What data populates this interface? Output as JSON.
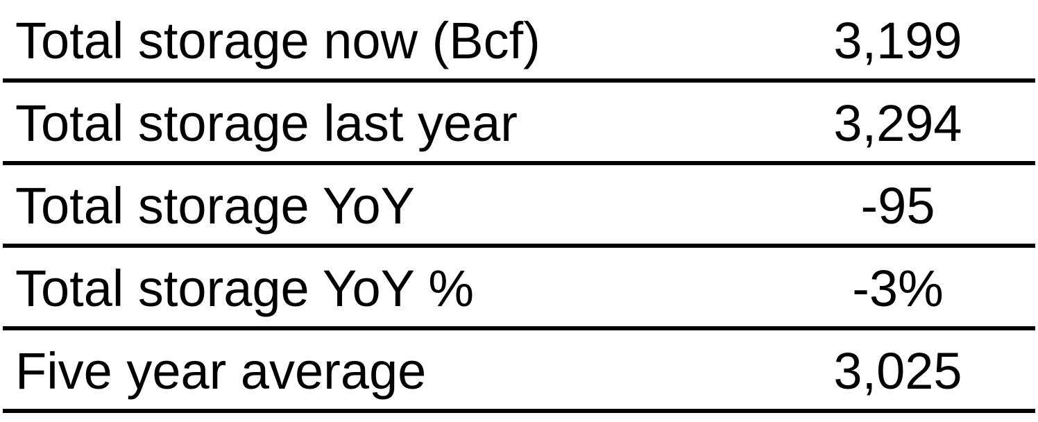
{
  "rows": [
    {
      "label": "Total storage now (Bcf)",
      "value": "3,199"
    },
    {
      "label": "Total storage last year",
      "value": "3,294"
    },
    {
      "label": "Total storage YoY",
      "value": "-95"
    },
    {
      "label": "Total storage YoY %",
      "value": "-3%"
    },
    {
      "label": "Five year average",
      "value": "3,025"
    }
  ]
}
